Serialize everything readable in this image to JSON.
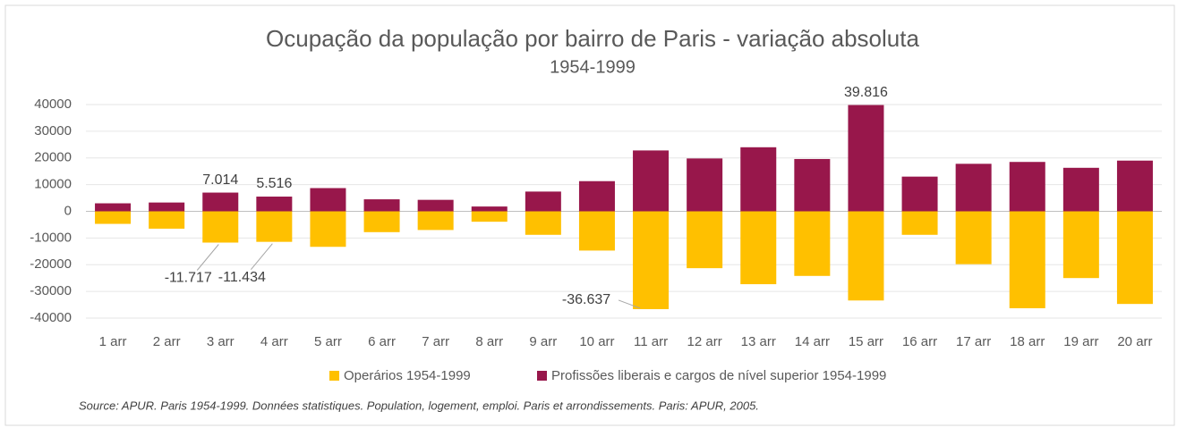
{
  "chart_data": {
    "type": "bar",
    "stacked": false,
    "title": "Ocupação da população por bairro de Paris - variação absoluta",
    "subtitle": "1954-1999",
    "source": "Source: APUR. Paris 1954-1999. Données statistiques. Population, logement, emploi. Paris et arrondissements. Paris: APUR, 2005.",
    "categories": [
      "1 arr",
      "2 arr",
      "3 arr",
      "4 arr",
      "5 arr",
      "6 arr",
      "7 arr",
      "8 arr",
      "9 arr",
      "10 arr",
      "11 arr",
      "12 arr",
      "13 arr",
      "14 arr",
      "15 arr",
      "16 arr",
      "17 arr",
      "18 arr",
      "19 arr",
      "20 arr"
    ],
    "series": [
      {
        "name": "Operários 1954-1999",
        "color": "#FFC000",
        "values": [
          -4700,
          -6500,
          -11717,
          -11434,
          -13300,
          -7800,
          -7000,
          -3900,
          -8800,
          -14700,
          -36637,
          -21300,
          -27300,
          -24200,
          -33400,
          -8800,
          -19800,
          -36300,
          -25000,
          -34700
        ],
        "value_labels": [
          null,
          null,
          "-11.717",
          "-11.434",
          null,
          null,
          null,
          null,
          null,
          null,
          "-36.637",
          null,
          null,
          null,
          null,
          null,
          null,
          null,
          null,
          null
        ]
      },
      {
        "name": "Profissões liberais e cargos de nível superior  1954-1999",
        "color": "#98174B",
        "values": [
          3000,
          3300,
          7014,
          5516,
          8700,
          4500,
          4300,
          1800,
          7400,
          11300,
          22800,
          19800,
          24000,
          19600,
          39816,
          13000,
          17800,
          18500,
          16300,
          19000
        ],
        "value_labels": [
          null,
          null,
          "7.014",
          "5.516",
          null,
          null,
          null,
          null,
          null,
          null,
          null,
          null,
          null,
          null,
          "39.816",
          null,
          null,
          null,
          null,
          null
        ]
      }
    ],
    "ylim": [
      -40000,
      40000
    ],
    "yticks": [
      -40000,
      -30000,
      -20000,
      -10000,
      0,
      10000,
      20000,
      30000,
      40000
    ],
    "grid": true,
    "legend": "bottom"
  }
}
